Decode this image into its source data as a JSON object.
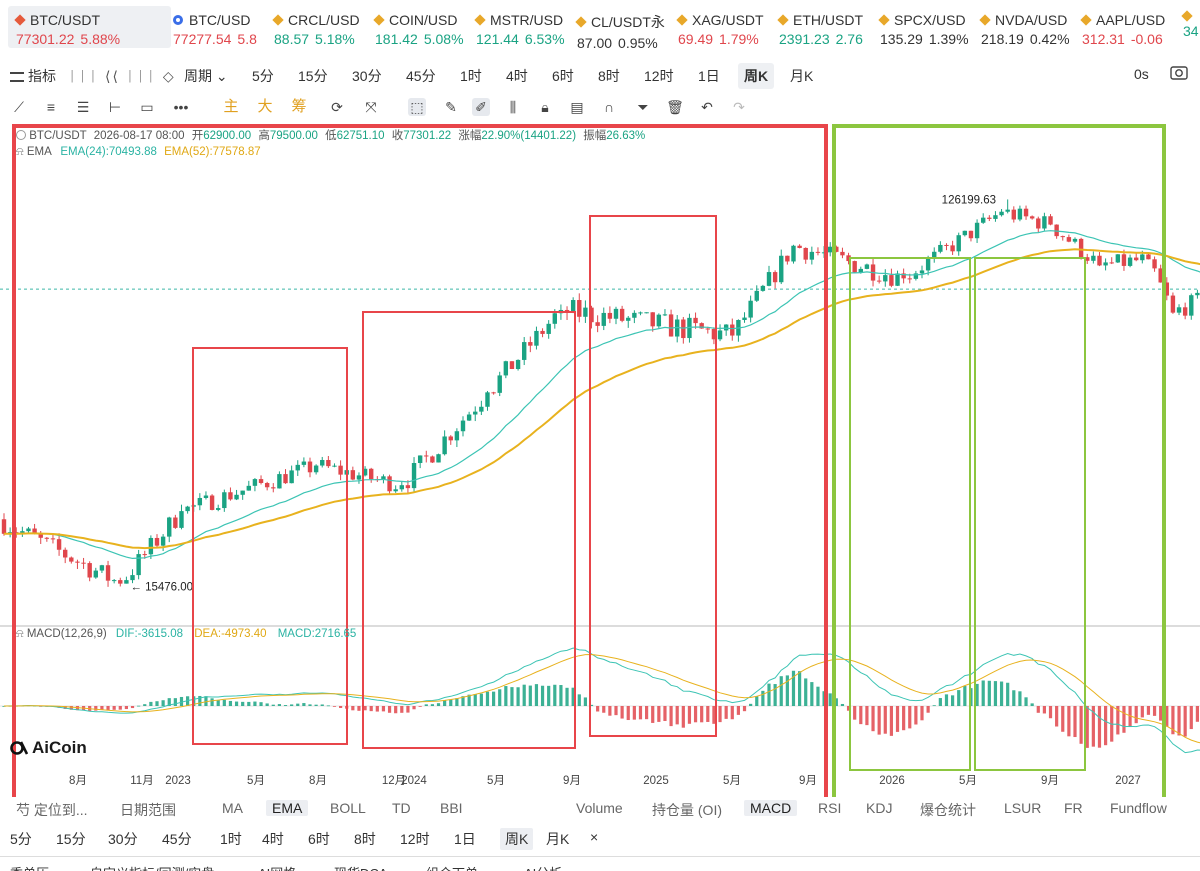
{
  "ticker": [
    {
      "symbol": "BTC/USDT",
      "price": "77301.22",
      "change": "5.88%",
      "dir": "down",
      "icon": "btc-icon"
    },
    {
      "symbol": "BTC/USD",
      "price": "77277.54",
      "change": "5.8",
      "dir": "down",
      "icon": "circle-icon"
    },
    {
      "symbol": "CRCL/USD",
      "price": "88.57",
      "change": "5.18%",
      "dir": "up",
      "icon": "diamond-icon"
    },
    {
      "symbol": "COIN/USD",
      "price": "181.42",
      "change": "5.08%",
      "dir": "up",
      "icon": "diamond-icon"
    },
    {
      "symbol": "MSTR/USD",
      "price": "121.44",
      "change": "6.53%",
      "dir": "up",
      "icon": "diamond-icon"
    },
    {
      "symbol": "CL/USDT永",
      "price": "87.00",
      "change": "0.95%",
      "dir": "neutral",
      "icon": "diamond-icon"
    },
    {
      "symbol": "XAG/USDT",
      "price": "69.49",
      "change": "1.79%",
      "dir": "down",
      "icon": "diamond-icon"
    },
    {
      "symbol": "ETH/USDT",
      "price": "2391.23",
      "change": "2.76",
      "dir": "up",
      "icon": "diamond-icon"
    },
    {
      "symbol": "SPCX/USD",
      "price": "135.29",
      "change": "1.39%",
      "dir": "neutral",
      "icon": "diamond-icon"
    },
    {
      "symbol": "NVDA/USD",
      "price": "218.19",
      "change": "0.42%",
      "dir": "neutral",
      "icon": "diamond-icon"
    },
    {
      "symbol": "AAPL/USD",
      "price": "312.31",
      "change": "-0.06",
      "dir": "down",
      "icon": "diamond-icon"
    },
    {
      "symbol": "",
      "price": "34",
      "change": "",
      "dir": "up",
      "icon": "diamond-icon"
    }
  ],
  "intervals": {
    "indicator": "指标",
    "period": "周期",
    "items": [
      "5分",
      "15分",
      "30分",
      "45分",
      "1时",
      "4时",
      "6时",
      "8时",
      "12时",
      "1日",
      "周K",
      "月K"
    ],
    "active": "周K",
    "right": "0s"
  },
  "tools": {
    "zh": [
      "主",
      "大",
      "筹"
    ]
  },
  "legend": {
    "symbol": "BTC/USDT",
    "date": "2026-08-17 08:00",
    "open_label": "开",
    "open": "62900.00",
    "high_label": "高",
    "high": "79500.00",
    "low_label": "低",
    "low": "62751.10",
    "close_label": "收",
    "close": "77301.22",
    "chg_label": "涨幅",
    "chg": "22.90%(14401.22)",
    "amp_label": "振幅",
    "amp": "26.63%",
    "ema_name": "EMA",
    "ema24": "EMA(24):70493.88",
    "ema52": "EMA(52):77578.87",
    "macd_name": "MACD(12,26,9)",
    "dif": "DIF:-3615.08",
    "dea": "DEA:-4973.40",
    "macd": "MACD:2716.65"
  },
  "annotations": {
    "high": "126199.63",
    "low": "← 15476.00"
  },
  "chart_data": {
    "type": "candlestick",
    "xlabels": [
      "8月",
      "11月",
      "2023",
      "5月",
      "8月",
      "12月",
      "2024",
      "5月",
      "9月",
      "2025",
      "5月",
      "9月",
      "2026",
      "5月",
      "9月",
      "2027"
    ],
    "price_extremes": {
      "high": 126199.63,
      "low": 15476.0
    },
    "last_close": 77301.22,
    "segments": [
      {
        "from": 22000,
        "to": 15476,
        "n": 20,
        "vol": 0.06
      },
      {
        "from": 15476,
        "to": 23000,
        "n": 10,
        "vol": 0.06
      },
      {
        "from": 23000,
        "to": 29500,
        "n": 22,
        "vol": 0.05
      },
      {
        "from": 29500,
        "to": 26500,
        "n": 14,
        "vol": 0.05
      },
      {
        "from": 26500,
        "to": 44000,
        "n": 14,
        "vol": 0.06
      },
      {
        "from": 44000,
        "to": 69000,
        "n": 12,
        "vol": 0.06
      },
      {
        "from": 69000,
        "to": 60000,
        "n": 28,
        "vol": 0.07
      },
      {
        "from": 60000,
        "to": 98000,
        "n": 10,
        "vol": 0.06
      },
      {
        "from": 98000,
        "to": 82000,
        "n": 18,
        "vol": 0.06
      },
      {
        "from": 82000,
        "to": 118000,
        "n": 16,
        "vol": 0.05
      },
      {
        "from": 118000,
        "to": 110000,
        "n": 8,
        "vol": 0.05
      },
      {
        "from": 110000,
        "to": 88000,
        "n": 8,
        "vol": 0.05
      },
      {
        "from": 88000,
        "to": 91000,
        "n": 8,
        "vol": 0.05
      },
      {
        "from": 91000,
        "to": 68000,
        "n": 4,
        "vol": 0.05
      },
      {
        "from": 68000,
        "to": 80000,
        "n": 10,
        "vol": 0.05
      },
      {
        "from": 80000,
        "to": 62000,
        "n": 6,
        "vol": 0.05
      },
      {
        "from": 62000,
        "to": 64000,
        "n": 7,
        "vol": 0.03
      },
      {
        "from": 62900,
        "to": 77301,
        "n": 1,
        "vol": 0.05
      }
    ],
    "ema": [
      24,
      52
    ],
    "colors": {
      "up": "#1aa383",
      "down": "#e0464c",
      "ema24": "#3cc4b4",
      "ema52": "#e8b21e"
    }
  },
  "overlay_boxes": {
    "red": "#e8454a",
    "green": "#8cc63f"
  },
  "indicator_tabs": {
    "items": [
      "芍 定位到...",
      "日期范围",
      "MA",
      "EMA",
      "BOLL",
      "TD",
      "BBI",
      "Volume",
      "持仓量 (OI)",
      "MACD",
      "RSI",
      "KDJ",
      "爆仓统计",
      "LSUR",
      "FR",
      "Fundflow"
    ],
    "active": [
      "EMA",
      "MACD"
    ]
  },
  "periods2": {
    "items": [
      "5分",
      "15分",
      "30分",
      "45分",
      "1时",
      "4时",
      "6时",
      "8时",
      "12时",
      "1日",
      "周K",
      "月K",
      "×"
    ],
    "active": "周K"
  },
  "bottombar": [
    "委单历",
    "自定义指标/回测/实盘",
    "AI网格",
    "现货DCA",
    "组合下单",
    "AI分析"
  ],
  "logo": "AiCoin"
}
